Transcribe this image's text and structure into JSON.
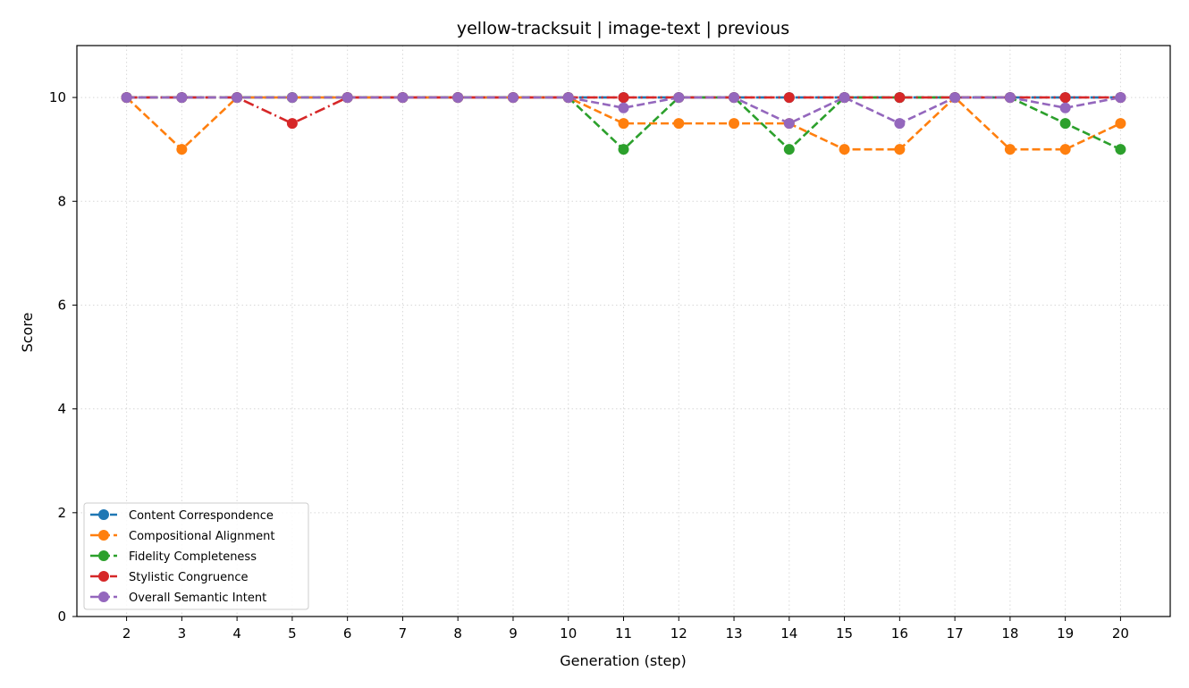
{
  "chart_data": {
    "type": "line",
    "title": "yellow-tracksuit | image-text | previous",
    "xlabel": "Generation (step)",
    "ylabel": "Score",
    "x": [
      2,
      3,
      4,
      5,
      6,
      7,
      8,
      9,
      10,
      11,
      12,
      13,
      14,
      15,
      16,
      17,
      18,
      19,
      20
    ],
    "xlim": [
      1.1,
      20.9
    ],
    "ylim": [
      0,
      11
    ],
    "yticks": [
      0,
      2,
      4,
      6,
      8,
      10
    ],
    "grid": true,
    "legend_position": "lower-left",
    "series": [
      {
        "name": "Content Correspondence",
        "color": "#1f77b4",
        "line_style": "dashdot",
        "values": [
          10,
          10,
          10,
          10,
          10,
          10,
          10,
          10,
          10,
          10,
          10,
          10,
          10,
          10,
          10,
          10,
          10,
          10,
          10
        ]
      },
      {
        "name": "Compositional Alignment",
        "color": "#ff7f0e",
        "line_style": "dashed",
        "values": [
          10,
          9,
          10,
          10,
          10,
          10,
          10,
          10,
          10,
          9.5,
          9.5,
          9.5,
          9.5,
          9,
          9,
          10,
          9,
          9,
          9.5
        ]
      },
      {
        "name": "Fidelity Completeness",
        "color": "#2ca02c",
        "line_style": "dashed",
        "values": [
          10,
          10,
          10,
          10,
          10,
          10,
          10,
          10,
          10,
          9,
          10,
          10,
          9,
          10,
          10,
          10,
          10,
          9.5,
          9
        ]
      },
      {
        "name": "Stylistic Congruence",
        "color": "#d62728",
        "line_style": "dashdot",
        "values": [
          10,
          10,
          10,
          9.5,
          10,
          10,
          10,
          10,
          10,
          10,
          10,
          10,
          10,
          10,
          10,
          10,
          10,
          10,
          10
        ]
      },
      {
        "name": "Overall Semantic Intent",
        "color": "#9467bd",
        "line_style": "dashed",
        "values": [
          10,
          10,
          10,
          10,
          10,
          10,
          10,
          10,
          10,
          9.8,
          10,
          10,
          9.5,
          10,
          9.5,
          10,
          10,
          9.8,
          10
        ]
      }
    ]
  }
}
